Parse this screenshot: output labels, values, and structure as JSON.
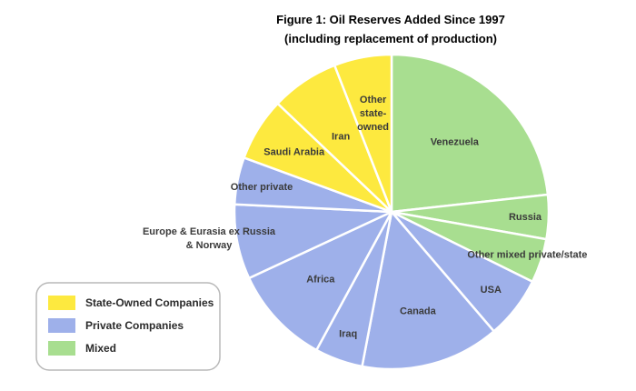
{
  "chart_data": {
    "type": "pie",
    "title": "Figure 1: Oil Reserves Added Since 1997",
    "subtitle": "(including replacement of production)",
    "slices": [
      {
        "label": "Venezuela",
        "value": 23.6,
        "group": "mixed"
      },
      {
        "label": "Russia",
        "value": 4.6,
        "group": "mixed"
      },
      {
        "label": "Other mixed private/state",
        "value": 4.6,
        "group": "mixed"
      },
      {
        "label": "USA",
        "value": 6.5,
        "group": "private"
      },
      {
        "label": "Canada",
        "value": 14.5,
        "group": "private"
      },
      {
        "label": "Iraq",
        "value": 5.0,
        "group": "private"
      },
      {
        "label": "Africa",
        "value": 10.3,
        "group": "private"
      },
      {
        "label": "Europe & Eurasia ex Russia & Norway",
        "value": 7.8,
        "group": "private"
      },
      {
        "label": "Other private",
        "value": 4.9,
        "group": "private"
      },
      {
        "label": "Saudi Arabia",
        "value": 6.6,
        "group": "state"
      },
      {
        "label": "Iran",
        "value": 7.1,
        "group": "state"
      },
      {
        "label": "Other state-owned",
        "value": 6.0,
        "group": "state"
      }
    ],
    "legend": {
      "placement": "bottom-left",
      "items": [
        {
          "key": "state",
          "label": "State-Owned Companies",
          "color": "#fde93f"
        },
        {
          "key": "private",
          "label": "Private Companies",
          "color": "#9eb0ea"
        },
        {
          "key": "mixed",
          "label": "Mixed",
          "color": "#a8de90"
        }
      ]
    },
    "colors": {
      "state": "#fde93f",
      "private": "#9eb0ea",
      "mixed": "#a8de90"
    }
  }
}
